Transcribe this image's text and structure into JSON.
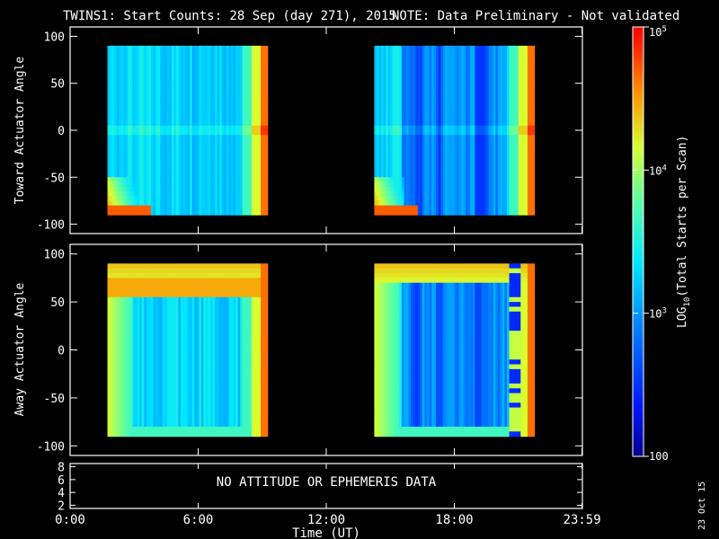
{
  "title": {
    "main": "TWINS1: Start Counts: 28 Sep (day 271), 2015",
    "note": "NOTE: Data Preliminary - Not validated",
    "note_color": "#ff2020"
  },
  "date_stamp": "23 Oct 15",
  "chart_data": {
    "type": "heatmap",
    "panels": [
      {
        "name": "toward",
        "ylabel": "Toward Actuator Angle",
        "ylim": [
          -110,
          110
        ],
        "yticks": [
          -100,
          -50,
          0,
          50,
          100
        ],
        "coverage_hours": [
          [
            1.75,
            9.25
          ],
          [
            14.25,
            21.75
          ]
        ]
      },
      {
        "name": "away",
        "ylabel": "Away Actuator Angle",
        "ylim": [
          -110,
          110
        ],
        "yticks": [
          -100,
          -50,
          0,
          50,
          100
        ],
        "coverage_hours": [
          [
            1.75,
            9.25
          ],
          [
            14.25,
            21.75
          ]
        ]
      }
    ],
    "angle_range": [
      -90,
      90
    ],
    "ephemeris_panel": {
      "ylim": [
        1.5,
        8.5
      ],
      "yticks": [
        2,
        4,
        6,
        8
      ],
      "message": "NO ATTITUDE OR EPHEMERIS DATA"
    },
    "xaxis": {
      "label": "Time (UT)",
      "xlim_hours": [
        0,
        24
      ],
      "ticks": [
        {
          "hours": 0,
          "label": "0:00"
        },
        {
          "hours": 6,
          "label": "6:00"
        },
        {
          "hours": 12,
          "label": "12:00"
        },
        {
          "hours": 18,
          "label": "18:00"
        },
        {
          "hours": 23.983,
          "label": "23:59"
        }
      ]
    },
    "colorbar": {
      "label_main": "LOG",
      "label_sub": "10",
      "label_rest": "(Total Starts per Scan)",
      "range": [
        100,
        100000
      ],
      "tick_labels": [
        {
          "value": 100,
          "base": "100",
          "exp": ""
        },
        {
          "value": 1000,
          "base": "10",
          "exp": "3"
        },
        {
          "value": 10000,
          "base": "10",
          "exp": "4"
        },
        {
          "value": 100000,
          "base": "10",
          "exp": "5"
        }
      ]
    }
  }
}
